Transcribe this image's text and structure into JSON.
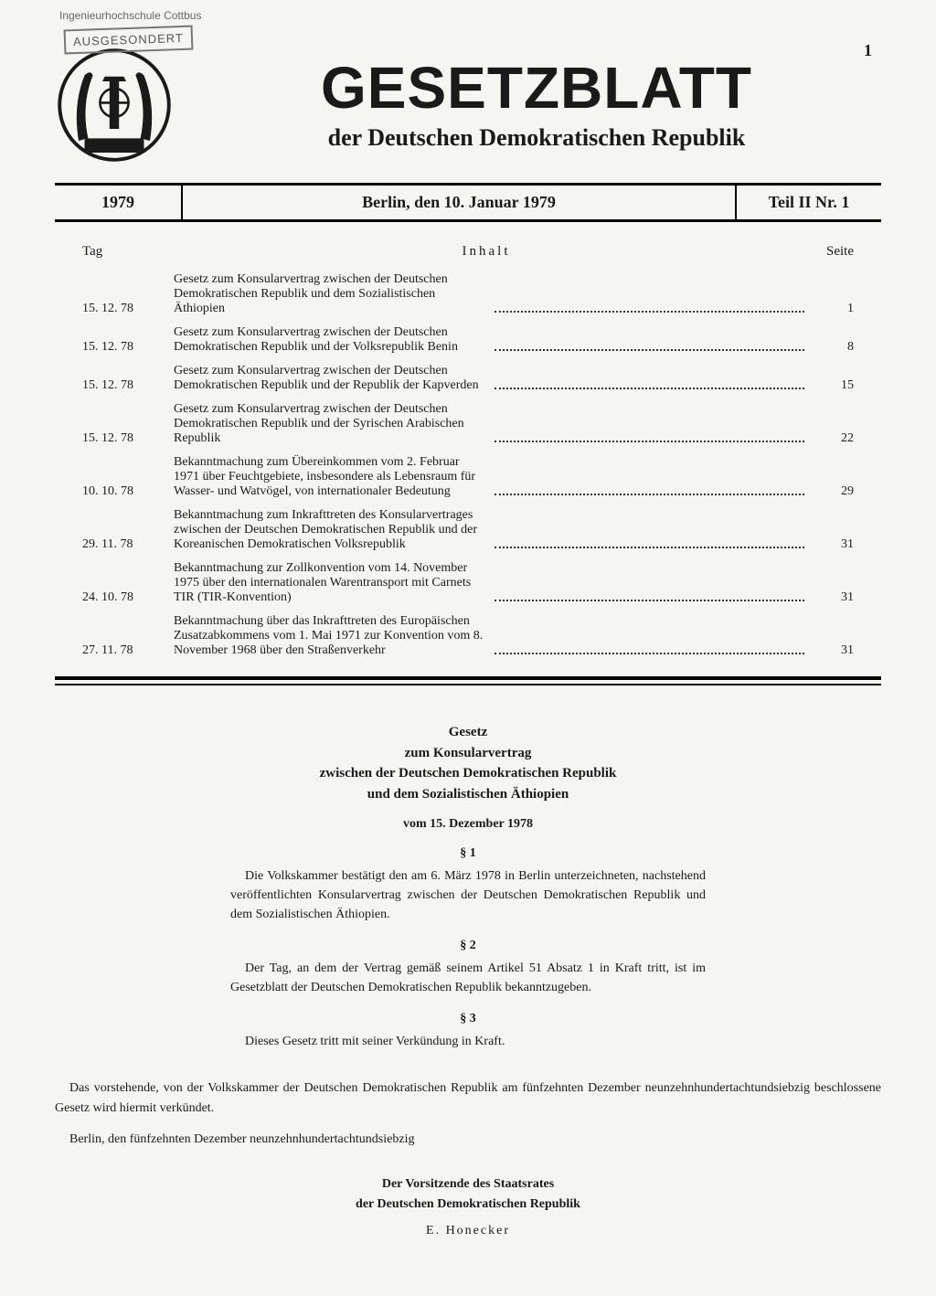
{
  "page_number": "1",
  "stamp_top": "Ingenieurhochschule Cottbus",
  "stamp": "AUSGESONDERT",
  "masthead": {
    "title": "GESETZBLATT",
    "subtitle": "der Deutschen Demokratischen Republik"
  },
  "header": {
    "year": "1979",
    "date": "Berlin, den 10. Januar 1979",
    "part": "Teil II Nr. 1"
  },
  "toc": {
    "col_tag": "Tag",
    "col_inhalt": "Inhalt",
    "col_seite": "Seite",
    "rows": [
      {
        "date": "15. 12. 78",
        "desc": "Gesetz zum Konsularvertrag zwischen der Deutschen Demokratischen Republik und dem Sozialistischen Äthiopien",
        "page": "1"
      },
      {
        "date": "15. 12. 78",
        "desc": "Gesetz zum Konsularvertrag zwischen der Deutschen Demokratischen Republik und der Volksrepublik Benin",
        "page": "8"
      },
      {
        "date": "15. 12. 78",
        "desc": "Gesetz zum Konsularvertrag zwischen der Deutschen Demokratischen Republik und der Republik der Kapverden",
        "page": "15"
      },
      {
        "date": "15. 12. 78",
        "desc": "Gesetz zum Konsularvertrag zwischen der Deutschen Demokratischen Republik und der Syrischen Arabischen Republik",
        "page": "22"
      },
      {
        "date": "10. 10. 78",
        "desc": "Bekanntmachung zum Übereinkommen vom 2. Februar 1971 über Feuchtgebiete, insbesondere als Lebensraum für Wasser- und Watvögel, von internationaler Bedeutung",
        "page": "29"
      },
      {
        "date": "29. 11. 78",
        "desc": "Bekanntmachung zum Inkrafttreten des Konsularvertrages zwischen der Deutschen Demokratischen Republik und der Koreanischen Demokratischen Volksrepublik",
        "page": "31"
      },
      {
        "date": "24. 10. 78",
        "desc": "Bekanntmachung zur Zollkonvention vom 14. November 1975 über den internationalen Warentransport mit Carnets TIR (TIR-Konvention)",
        "page": "31"
      },
      {
        "date": "27. 11. 78",
        "desc": "Bekanntmachung über das Inkrafttreten des Europäischen Zusatzabkommens vom 1. Mai 1971 zur Konvention vom 8. November 1968 über den Straßenverkehr",
        "page": "31"
      }
    ]
  },
  "law": {
    "title_line1": "Gesetz",
    "title_line2": "zum Konsularvertrag",
    "title_line3": "zwischen der Deutschen Demokratischen Republik",
    "title_line4": "und dem Sozialistischen Äthiopien",
    "date": "vom 15. Dezember 1978",
    "sections": [
      {
        "num": "§ 1",
        "text": "Die Volkskammer bestätigt den am 6. März 1978 in Berlin unterzeichneten, nachstehend veröffentlichten Konsularvertrag zwischen der Deutschen Demokratischen Republik und dem Sozialistischen Äthiopien."
      },
      {
        "num": "§ 2",
        "text": "Der Tag, an dem der Vertrag gemäß seinem Artikel 51 Absatz 1 in Kraft tritt, ist im Gesetzblatt der Deutschen Demokratischen Republik bekanntzugeben."
      },
      {
        "num": "§ 3",
        "text": "Dieses Gesetz tritt mit seiner Verkündung in Kraft."
      }
    ]
  },
  "closing": {
    "text": "Das vorstehende, von der Volkskammer der Deutschen Demokratischen Republik am fünfzehnten Dezember neunzehnhundertachtundsiebzig beschlossene Gesetz wird hiermit verkündet.",
    "place": "Berlin, den fünfzehnten Dezember neunzehnhundertachtundsiebzig"
  },
  "signature": {
    "title_line1": "Der Vorsitzende des Staatsrates",
    "title_line2": "der Deutschen Demokratischen Republik",
    "name": "E. Honecker"
  }
}
